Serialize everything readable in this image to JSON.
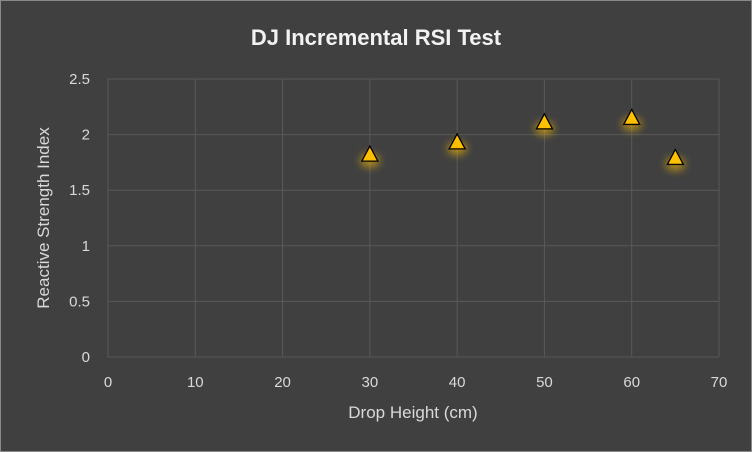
{
  "chart_data": {
    "type": "scatter",
    "title": "DJ Incremental RSI Test",
    "xlabel": "Drop Height (cm)",
    "ylabel": "Reactive Strength Index",
    "xlim": [
      0,
      70
    ],
    "ylim": [
      0,
      2.5
    ],
    "x_ticks": [
      0,
      10,
      20,
      30,
      40,
      50,
      60,
      70
    ],
    "y_ticks": [
      0,
      0.5,
      1,
      1.5,
      2,
      2.5
    ],
    "x_tick_labels": [
      "0",
      "10",
      "20",
      "30",
      "40",
      "50",
      "60",
      "70"
    ],
    "y_tick_labels": [
      "0",
      "0.5",
      "1",
      "1.5",
      "2",
      "2.5"
    ],
    "grid": true,
    "legend": "none",
    "series": [
      {
        "marker": "triangle",
        "color": "#FFC000",
        "points": [
          {
            "x": 30,
            "y": 1.82
          },
          {
            "x": 40,
            "y": 1.93
          },
          {
            "x": 50,
            "y": 2.11
          },
          {
            "x": 60,
            "y": 2.15
          },
          {
            "x": 65,
            "y": 1.79
          }
        ]
      }
    ],
    "colors": {
      "background": "#404040",
      "gridline": "#595959",
      "text": "#D9D9D9",
      "title": "#F2F2F2"
    }
  }
}
